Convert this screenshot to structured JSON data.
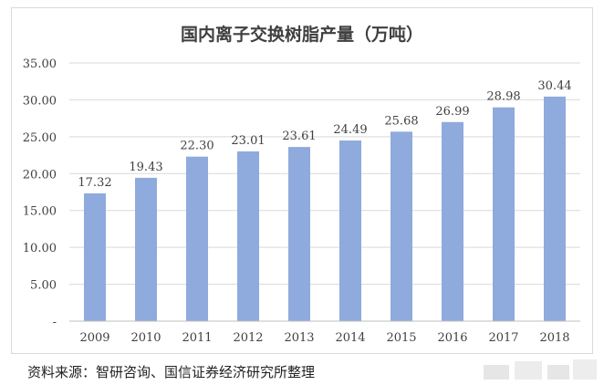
{
  "chart_data": {
    "type": "bar",
    "title": "国内离子交换树脂产量（万吨）",
    "categories": [
      "2009",
      "2010",
      "2011",
      "2012",
      "2013",
      "2014",
      "2015",
      "2016",
      "2017",
      "2018"
    ],
    "values": [
      17.32,
      19.43,
      22.3,
      23.01,
      23.61,
      24.49,
      25.68,
      26.99,
      28.98,
      30.44
    ],
    "value_labels": [
      "17.32",
      "19.43",
      "22.30",
      "23.01",
      "23.61",
      "24.49",
      "25.68",
      "26.99",
      "28.98",
      "30.44"
    ],
    "y_ticks": [
      "-",
      "5.00",
      "10.00",
      "15.00",
      "20.00",
      "25.00",
      "30.00",
      "35.00"
    ],
    "ylim": [
      0,
      35
    ],
    "grid": true,
    "legend": "none",
    "bar_color": "#8faadc",
    "grid_color": "#d9d9d9"
  },
  "source": "资料来源：智研咨询、国信证券经济研究所整理"
}
